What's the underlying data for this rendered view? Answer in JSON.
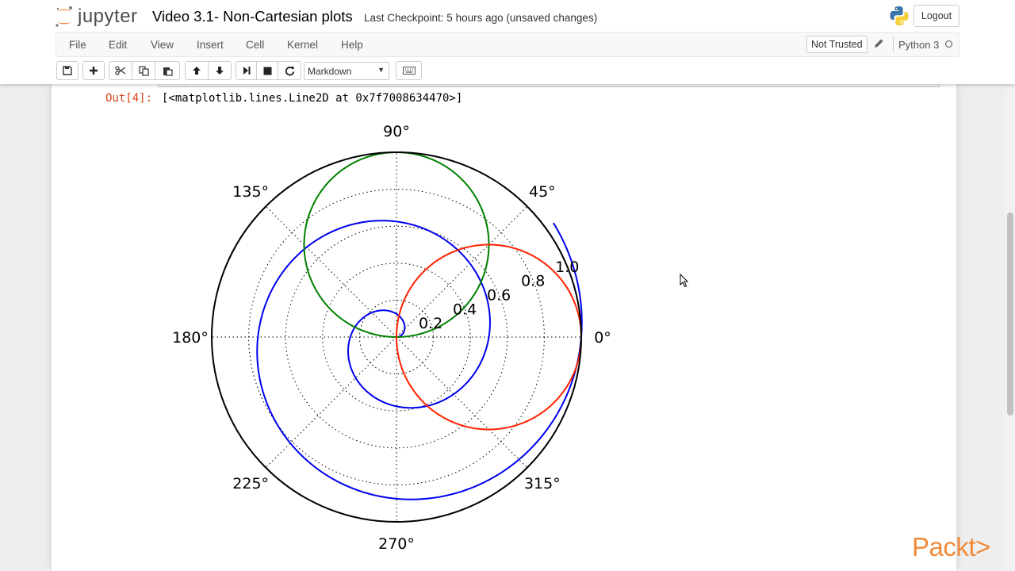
{
  "header": {
    "logo_text": "jupyter",
    "notebook_name": "Video 3.1- Non-Cartesian plots",
    "checkpoint": "Last Checkpoint: 5 hours ago (unsaved changes)",
    "logout_label": "Logout"
  },
  "menu": {
    "items": [
      "File",
      "Edit",
      "View",
      "Insert",
      "Cell",
      "Kernel",
      "Help"
    ],
    "not_trusted": "Not Trusted",
    "kernel_name": "Python 3"
  },
  "toolbar": {
    "cell_type": "Markdown",
    "buttons": [
      "save-icon",
      "plus-icon",
      "scissors-icon",
      "copy-icon",
      "paste-icon",
      "arrow-up-icon",
      "arrow-down-icon",
      "run-icon",
      "stop-icon",
      "restart-icon",
      "keyboard-icon"
    ]
  },
  "output": {
    "prompt": "Out[4]:",
    "text": "[<matplotlib.lines.Line2D at 0x7f7008634470>]"
  },
  "chart_data": {
    "type": "line",
    "projection": "polar",
    "angle_tick_labels": [
      "0°",
      "45°",
      "90°",
      "135°",
      "180°",
      "225°",
      "270°",
      "315°"
    ],
    "angle_ticks_deg": [
      0,
      45,
      90,
      135,
      180,
      225,
      270,
      315
    ],
    "radial_tick_labels": [
      "0.2",
      "0.4",
      "0.6",
      "0.8",
      "1.0"
    ],
    "radial_ticks": [
      0.2,
      0.4,
      0.6,
      0.8,
      1.0
    ],
    "rlim": [
      0,
      1.0
    ],
    "grid": true,
    "series": [
      {
        "color": "#0000ee",
        "curve": "spiral r = theta / (4*pi), theta 0 to 4.2*pi"
      },
      {
        "color": "#008000",
        "curve": "circle r = sin(theta)"
      },
      {
        "color": "#ff2200",
        "curve": "circle r = cos(theta)"
      }
    ]
  },
  "colors": {
    "out_prompt": "#d84315",
    "packt": "#ef8a3a"
  },
  "watermark": "Packt>"
}
